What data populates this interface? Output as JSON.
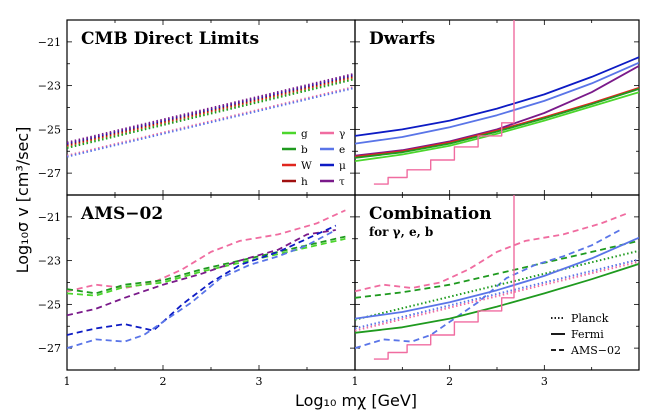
{
  "figure": {
    "ylabel": "Log₁₀σ v [cm³/sec]",
    "xlabel": "Log₁₀ mχ [GeV]"
  },
  "legend": {
    "entries": [
      {
        "label": "g",
        "color": "#4cd62c"
      },
      {
        "label": "γ",
        "color": "#f06ca0"
      },
      {
        "label": "b",
        "color": "#1f9a1f"
      },
      {
        "label": "e",
        "color": "#5a75e8"
      },
      {
        "label": "W",
        "color": "#e0261e"
      },
      {
        "label": "μ",
        "color": "#0d1bc4"
      },
      {
        "label": "h",
        "color": "#a01010"
      },
      {
        "label": "τ",
        "color": "#7a1a8a"
      }
    ]
  },
  "style_legend": [
    {
      "label": "Planck",
      "style": "dotted"
    },
    {
      "label": "Fermi",
      "style": "solid"
    },
    {
      "label": "AMS−02",
      "style": "dashed"
    }
  ],
  "chart_data": [
    {
      "type": "line",
      "title": "CMB Direct Limits",
      "xlim": [
        1,
        4
      ],
      "ylim": [
        -28,
        -20
      ],
      "xticks": [
        "1",
        "2",
        "3"
      ],
      "yticks": [
        "−21",
        "−23",
        "−25",
        "−27"
      ],
      "series": [
        {
          "name": "g",
          "style": "dotted",
          "color": "#4cd62c",
          "x": [
            1,
            4
          ],
          "y": [
            -25.8,
            -22.65
          ]
        },
        {
          "name": "b",
          "style": "dotted",
          "color": "#1f9a1f",
          "x": [
            1,
            4
          ],
          "y": [
            -25.85,
            -22.7
          ]
        },
        {
          "name": "W",
          "style": "dotted",
          "color": "#e0261e",
          "x": [
            1,
            4
          ],
          "y": [
            -25.75,
            -22.6
          ]
        },
        {
          "name": "h",
          "style": "dotted",
          "color": "#a01010",
          "x": [
            1,
            4
          ],
          "y": [
            -25.7,
            -22.55
          ]
        },
        {
          "name": "γ",
          "style": "dotted",
          "color": "#f06ca0",
          "x": [
            1,
            4
          ],
          "y": [
            -26.2,
            -23.05
          ]
        },
        {
          "name": "e",
          "style": "dotted",
          "color": "#5a75e8",
          "x": [
            1,
            4
          ],
          "y": [
            -26.25,
            -23.1
          ]
        },
        {
          "name": "μ",
          "style": "dotted",
          "color": "#0d1bc4",
          "x": [
            1,
            4
          ],
          "y": [
            -25.65,
            -22.5
          ]
        },
        {
          "name": "τ",
          "style": "dotted",
          "color": "#7a1a8a",
          "x": [
            1,
            4
          ],
          "y": [
            -25.6,
            -22.45
          ]
        }
      ]
    },
    {
      "type": "line",
      "title": "Dwarfs",
      "xlim": [
        1,
        4
      ],
      "ylim": [
        -28,
        -20
      ],
      "xticks": [
        "1",
        "2",
        "3"
      ],
      "yticks": [],
      "series": [
        {
          "name": "μ",
          "style": "solid",
          "color": "#0d1bc4",
          "x": [
            1,
            1.5,
            2,
            2.5,
            3,
            3.5,
            4
          ],
          "y": [
            -25.3,
            -25.0,
            -24.6,
            -24.05,
            -23.4,
            -22.6,
            -21.7
          ]
        },
        {
          "name": "e",
          "style": "solid",
          "color": "#5a75e8",
          "x": [
            1,
            1.5,
            2,
            2.5,
            3,
            3.5,
            4
          ],
          "y": [
            -25.65,
            -25.35,
            -24.9,
            -24.35,
            -23.7,
            -22.9,
            -21.95
          ]
        },
        {
          "name": "τ",
          "style": "solid",
          "color": "#7a1a8a",
          "x": [
            1,
            1.5,
            2,
            2.5,
            3,
            3.5,
            4
          ],
          "y": [
            -26.2,
            -25.95,
            -25.55,
            -25.0,
            -24.25,
            -23.3,
            -22.1
          ]
        },
        {
          "name": "W",
          "style": "solid",
          "color": "#e0261e",
          "x": [
            1,
            1.5,
            2,
            2.5,
            3,
            3.5,
            4
          ],
          "y": [
            -26.25,
            -26.0,
            -25.6,
            -25.05,
            -24.45,
            -23.8,
            -23.1
          ]
        },
        {
          "name": "b",
          "style": "solid",
          "color": "#1f9a1f",
          "x": [
            1,
            1.5,
            2,
            2.5,
            3,
            3.5,
            4
          ],
          "y": [
            -26.3,
            -26.05,
            -25.65,
            -25.1,
            -24.5,
            -23.85,
            -23.15
          ]
        },
        {
          "name": "g",
          "style": "solid",
          "color": "#4cd62c",
          "x": [
            1,
            1.5,
            2,
            2.5,
            3,
            3.5,
            4
          ],
          "y": [
            -26.45,
            -26.15,
            -25.75,
            -25.2,
            -24.6,
            -23.95,
            -23.3
          ]
        },
        {
          "name": "γ",
          "style": "step",
          "color": "#f06ca0",
          "x": [
            1.2,
            1.35,
            1.35,
            1.55,
            1.55,
            1.8,
            1.8,
            2.05,
            2.05,
            2.3,
            2.3,
            2.55,
            2.55,
            2.68,
            2.68,
            2.68
          ],
          "y": [
            -27.5,
            -27.5,
            -27.2,
            -27.2,
            -26.85,
            -26.85,
            -26.4,
            -26.4,
            -25.8,
            -25.8,
            -25.3,
            -25.3,
            -24.7,
            -24.7,
            -24.0,
            -20.0
          ]
        }
      ]
    },
    {
      "type": "line",
      "title": "AMS−02",
      "xlim": [
        1,
        4
      ],
      "ylim": [
        -28,
        -20
      ],
      "xticks": [
        "1",
        "2",
        "3"
      ],
      "yticks": [
        "−21",
        "−23",
        "−25",
        "−27"
      ],
      "series": [
        {
          "name": "γ",
          "style": "dashed",
          "color": "#f06ca0",
          "x": [
            1,
            1.3,
            1.6,
            1.9,
            2.2,
            2.5,
            2.8,
            3.2,
            3.6,
            3.9
          ],
          "y": [
            -24.4,
            -24.1,
            -24.25,
            -24.0,
            -23.4,
            -22.6,
            -22.1,
            -21.8,
            -21.3,
            -20.7
          ]
        },
        {
          "name": "g",
          "style": "dashed",
          "color": "#4cd62c",
          "x": [
            1,
            1.3,
            1.6,
            2.0,
            2.4,
            2.8,
            3.2,
            3.6,
            3.9
          ],
          "y": [
            -24.5,
            -24.6,
            -24.2,
            -24.0,
            -23.5,
            -23.1,
            -22.7,
            -22.3,
            -22.0
          ]
        },
        {
          "name": "b",
          "style": "dashed",
          "color": "#1f9a1f",
          "x": [
            1,
            1.3,
            1.6,
            2.0,
            2.4,
            2.8,
            3.2,
            3.6,
            3.9
          ],
          "y": [
            -24.3,
            -24.5,
            -24.1,
            -23.9,
            -23.4,
            -23.0,
            -22.6,
            -22.2,
            -21.9
          ]
        },
        {
          "name": "τ",
          "style": "dashed",
          "color": "#7a1a8a",
          "x": [
            1,
            1.3,
            1.6,
            2.0,
            2.4,
            2.8,
            3.2,
            3.5,
            3.8
          ],
          "y": [
            -25.5,
            -25.2,
            -24.7,
            -24.1,
            -23.6,
            -23.0,
            -22.5,
            -21.8,
            -21.6
          ]
        },
        {
          "name": "μ",
          "style": "dashed",
          "color": "#0d1bc4",
          "x": [
            1,
            1.3,
            1.6,
            1.9,
            2.2,
            2.5,
            2.8,
            3.2,
            3.5,
            3.8
          ],
          "y": [
            -26.4,
            -26.1,
            -25.9,
            -26.2,
            -25.0,
            -24.0,
            -23.2,
            -22.6,
            -22.0,
            -21.4
          ]
        },
        {
          "name": "e",
          "style": "dashed",
          "color": "#5a75e8",
          "x": [
            1,
            1.3,
            1.6,
            1.8,
            2.0,
            2.3,
            2.6,
            2.9,
            3.2,
            3.5,
            3.8
          ],
          "y": [
            -27.0,
            -26.6,
            -26.7,
            -26.4,
            -25.8,
            -24.9,
            -23.8,
            -23.2,
            -22.8,
            -22.3,
            -21.6
          ]
        }
      ]
    },
    {
      "type": "line",
      "title": "Combination",
      "subtitle": "for γ, e, b",
      "xlim": [
        1,
        4
      ],
      "ylim": [
        -28,
        -20
      ],
      "xticks": [
        "1",
        "2",
        "3"
      ],
      "yticks": [],
      "series": [
        {
          "name": "γ",
          "style": "dashed",
          "color": "#f06ca0",
          "x": [
            1,
            1.3,
            1.6,
            1.9,
            2.2,
            2.5,
            2.8,
            3.2,
            3.6,
            3.9
          ],
          "y": [
            -24.4,
            -24.1,
            -24.25,
            -24.0,
            -23.4,
            -22.6,
            -22.1,
            -21.8,
            -21.3,
            -20.8
          ]
        },
        {
          "name": "b",
          "style": "dashed",
          "color": "#1f9a1f",
          "x": [
            1,
            1.5,
            2,
            2.5,
            3,
            3.5,
            4
          ],
          "y": [
            -24.7,
            -24.45,
            -24.1,
            -23.6,
            -23.1,
            -22.6,
            -22.1
          ]
        },
        {
          "name": "e",
          "style": "dashed",
          "color": "#5a75e8",
          "x": [
            1,
            1.3,
            1.6,
            1.8,
            2.0,
            2.3,
            2.6,
            2.9,
            3.2,
            3.5,
            3.8
          ],
          "y": [
            -27.0,
            -26.6,
            -26.7,
            -26.4,
            -25.8,
            -24.9,
            -23.8,
            -23.2,
            -22.8,
            -22.3,
            -21.6
          ]
        },
        {
          "name": "b",
          "style": "dotted",
          "color": "#1f9a1f",
          "x": [
            1,
            4
          ],
          "y": [
            -25.7,
            -22.55
          ]
        },
        {
          "name": "γ",
          "style": "dotted",
          "color": "#f06ca0",
          "x": [
            1,
            4
          ],
          "y": [
            -26.2,
            -23.05
          ]
        },
        {
          "name": "e",
          "style": "dotted",
          "color": "#5a75e8",
          "x": [
            1,
            4
          ],
          "y": [
            -26.1,
            -22.95
          ]
        },
        {
          "name": "e",
          "style": "solid",
          "color": "#5a75e8",
          "x": [
            1,
            1.5,
            2,
            2.5,
            3,
            3.5,
            4
          ],
          "y": [
            -25.65,
            -25.35,
            -24.9,
            -24.35,
            -23.7,
            -22.9,
            -21.95
          ]
        },
        {
          "name": "b",
          "style": "solid",
          "color": "#1f9a1f",
          "x": [
            1,
            1.5,
            2,
            2.5,
            3,
            3.5,
            4
          ],
          "y": [
            -26.3,
            -26.05,
            -25.65,
            -25.1,
            -24.5,
            -23.85,
            -23.15
          ]
        },
        {
          "name": "γ",
          "style": "step",
          "color": "#f06ca0",
          "x": [
            1.2,
            1.35,
            1.35,
            1.55,
            1.55,
            1.8,
            1.8,
            2.05,
            2.05,
            2.3,
            2.3,
            2.55,
            2.55,
            2.68,
            2.68,
            2.68
          ],
          "y": [
            -27.5,
            -27.5,
            -27.2,
            -27.2,
            -26.85,
            -26.85,
            -26.4,
            -26.4,
            -25.8,
            -25.8,
            -25.3,
            -25.3,
            -24.7,
            -24.7,
            -24.0,
            -20.0
          ]
        }
      ]
    }
  ]
}
